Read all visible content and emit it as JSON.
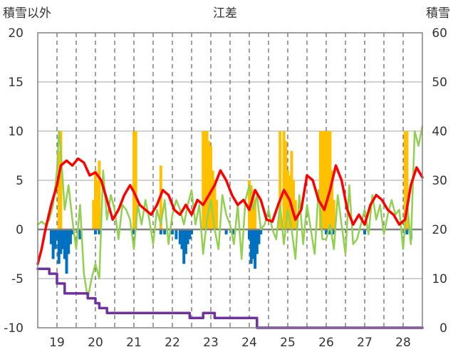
{
  "chart_data": {
    "type": "bar+line",
    "title": "江差",
    "left_axis": {
      "label": "積雪以外",
      "min": -10,
      "max": 20,
      "ticks": [
        "20",
        "15",
        "10",
        "5",
        "0",
        "-5",
        "-10"
      ]
    },
    "right_axis": {
      "label": "積雪",
      "min": 0,
      "max": 60,
      "ticks": [
        "60",
        "50",
        "40",
        "30",
        "20",
        "10",
        "0"
      ]
    },
    "x_axis": {
      "min": 18.5,
      "max": 28.5,
      "categories": [
        "19",
        "20",
        "21",
        "22",
        "23",
        "24",
        "25",
        "26",
        "27",
        "28"
      ]
    },
    "grid": true,
    "colors": {
      "temp": "#ff0000",
      "wind": "#92d050",
      "snow": "#7030a0",
      "sunshine": "#ffc000",
      "precip": "#0070c0",
      "zero": "#808080"
    },
    "series": [
      {
        "key": "temp",
        "axis": "left",
        "x": [
          18.5,
          18.6,
          18.7,
          18.85,
          19.0,
          19.1,
          19.25,
          19.4,
          19.55,
          19.7,
          19.85,
          20.0,
          20.15,
          20.3,
          20.45,
          20.6,
          20.75,
          20.9,
          21.0,
          21.15,
          21.3,
          21.45,
          21.6,
          21.75,
          21.9,
          22.05,
          22.2,
          22.35,
          22.5,
          22.65,
          22.8,
          22.95,
          23.1,
          23.25,
          23.4,
          23.55,
          23.7,
          23.85,
          24.0,
          24.15,
          24.3,
          24.45,
          24.6,
          24.75,
          24.9,
          25.05,
          25.2,
          25.35,
          25.5,
          25.65,
          25.8,
          25.95,
          26.1,
          26.25,
          26.4,
          26.55,
          26.7,
          26.85,
          27.0,
          27.15,
          27.3,
          27.45,
          27.6,
          27.75,
          27.9,
          28.05,
          28.2,
          28.35,
          28.5
        ],
        "values": [
          -3.5,
          -2.0,
          0.0,
          2.5,
          4.5,
          6.5,
          7.0,
          6.5,
          7.2,
          6.8,
          5.5,
          5.8,
          5.0,
          3.0,
          1.0,
          2.0,
          3.5,
          4.5,
          3.8,
          2.5,
          2.0,
          1.5,
          2.5,
          4.0,
          3.5,
          2.0,
          1.5,
          2.5,
          1.5,
          3.0,
          2.5,
          3.5,
          4.5,
          6.0,
          5.0,
          3.5,
          2.5,
          3.0,
          2.0,
          4.0,
          3.0,
          1.0,
          0.8,
          2.5,
          4.0,
          3.0,
          1.0,
          2.0,
          5.5,
          5.0,
          3.0,
          2.0,
          4.0,
          6.5,
          5.0,
          2.0,
          0.5,
          1.5,
          0.5,
          2.5,
          3.5,
          3.0,
          2.0,
          1.5,
          0.5,
          1.0,
          4.5,
          6.3,
          5.3
        ]
      },
      {
        "key": "wind",
        "axis": "left",
        "x": [
          18.5,
          18.6,
          18.7,
          18.8,
          18.9,
          19.0,
          19.05,
          19.1,
          19.2,
          19.3,
          19.4,
          19.5,
          19.6,
          19.7,
          19.8,
          19.9,
          20.0,
          20.1,
          20.2,
          20.3,
          20.4,
          20.5,
          20.6,
          20.7,
          20.8,
          20.9,
          21.0,
          21.1,
          21.2,
          21.3,
          21.4,
          21.5,
          21.6,
          21.7,
          21.8,
          21.9,
          22.0,
          22.1,
          22.2,
          22.3,
          22.4,
          22.5,
          22.6,
          22.7,
          22.8,
          22.9,
          23.0,
          23.1,
          23.2,
          23.3,
          23.4,
          23.5,
          23.6,
          23.7,
          23.8,
          23.9,
          24.0,
          24.1,
          24.2,
          24.3,
          24.4,
          24.5,
          24.6,
          24.7,
          24.8,
          24.9,
          25.0,
          25.1,
          25.2,
          25.3,
          25.4,
          25.5,
          25.6,
          25.7,
          25.8,
          25.9,
          26.0,
          26.1,
          26.2,
          26.3,
          26.4,
          26.5,
          26.6,
          26.7,
          26.8,
          26.9,
          27.0,
          27.1,
          27.2,
          27.3,
          27.4,
          27.5,
          27.6,
          27.7,
          27.8,
          27.9,
          28.0,
          28.1,
          28.2,
          28.3,
          28.4,
          28.5
        ],
        "values": [
          0.5,
          0.8,
          0.5,
          1.0,
          2.5,
          6.0,
          10.0,
          8.0,
          2.0,
          4.5,
          1.0,
          -2.0,
          2.5,
          -4.5,
          -7.0,
          -5.0,
          -3.5,
          -5.0,
          6.0,
          1.0,
          3.5,
          2.0,
          -1.0,
          2.5,
          2.0,
          1.0,
          -2.0,
          2.5,
          0.5,
          3.0,
          1.0,
          -1.5,
          2.0,
          0.5,
          3.0,
          -1.5,
          1.5,
          3.0,
          2.0,
          0.5,
          2.5,
          4.0,
          0.5,
          2.5,
          -2.5,
          1.0,
          3.0,
          0.0,
          -2.0,
          3.5,
          1.5,
          0.5,
          -1.5,
          2.5,
          -3.0,
          3.0,
          4.5,
          2.0,
          3.5,
          0.0,
          0.5,
          2.0,
          0.0,
          -1.0,
          2.5,
          -1.5,
          2.0,
          0.0,
          -3.0,
          3.5,
          -1.5,
          2.5,
          0.0,
          -2.5,
          4.0,
          -1.0,
          -1.0,
          0.5,
          -2.0,
          3.5,
          0.5,
          -2.5,
          4.5,
          -1.5,
          -1.0,
          0.5,
          2.0,
          -0.5,
          3.5,
          1.0,
          2.5,
          -0.5,
          1.5,
          3.0,
          1.5,
          2.0,
          -2.0,
          3.0,
          -1.5,
          10.0,
          8.5,
          10.5
        ]
      },
      {
        "key": "snow",
        "axis": "right",
        "x": [
          18.5,
          18.75,
          18.8,
          19.0,
          19.2,
          19.7,
          19.8,
          20.0,
          20.1,
          20.3,
          21.0,
          21.4,
          22.0,
          22.4,
          22.45,
          22.7,
          22.8,
          23.1,
          23.4,
          24.0,
          24.2,
          28.5
        ],
        "values": [
          12,
          12,
          11,
          9,
          7,
          7,
          6,
          5,
          4,
          3,
          3,
          3,
          3,
          3,
          2,
          2,
          3,
          2,
          2,
          2,
          0,
          0
        ]
      }
    ],
    "bars": [
      {
        "key": "sunshine",
        "axis": "left",
        "x": [
          19.05,
          19.1,
          19.95,
          20.0,
          20.05,
          20.1,
          21.0,
          21.05,
          21.7,
          22.8,
          22.85,
          22.9,
          22.95,
          23.0,
          23.05,
          23.1,
          23.15,
          24.0,
          24.05,
          24.1,
          24.15,
          24.8,
          24.9,
          24.95,
          25.0,
          25.05,
          25.1,
          25.15,
          25.2,
          25.85,
          25.9,
          25.95,
          26.0,
          26.05,
          26.1,
          26.15,
          26.2,
          28.05,
          28.1
        ],
        "values": [
          8.0,
          10.0,
          3.0,
          6.0,
          5.0,
          7.0,
          10.0,
          10.0,
          6.5,
          10.0,
          10.0,
          10.0,
          9.0,
          8.5,
          6.0,
          5.0,
          3.0,
          5.0,
          4.5,
          4.0,
          3.0,
          10.0,
          10.0,
          9.0,
          6.0,
          5.5,
          8.0,
          5.0,
          3.0,
          10.0,
          10.0,
          10.0,
          10.0,
          10.0,
          10.0,
          6.0,
          3.0,
          10.0,
          10.0
        ]
      },
      {
        "key": "precip",
        "axis": "left",
        "x": [
          18.85,
          18.9,
          18.95,
          19.0,
          19.05,
          19.1,
          19.15,
          19.2,
          19.25,
          19.3,
          19.35,
          19.4,
          19.6,
          20.0,
          20.1,
          21.0,
          21.7,
          21.8,
          22.0,
          22.1,
          22.2,
          22.25,
          22.3,
          22.35,
          22.4,
          22.45,
          22.5,
          23.4,
          23.6,
          24.0,
          24.05,
          24.1,
          24.15,
          24.2,
          24.25,
          24.3,
          26.0,
          26.1,
          26.2,
          27.0,
          28.1,
          28.2
        ],
        "values": [
          -1.5,
          -3.0,
          -2.0,
          -1.0,
          -3.5,
          -2.5,
          -2.0,
          -3.0,
          -4.5,
          -2.5,
          -1.5,
          -0.5,
          -1.0,
          -0.5,
          -0.5,
          -0.5,
          -0.5,
          -0.5,
          -0.5,
          -1.0,
          -1.5,
          -2.0,
          -3.5,
          -2.5,
          -1.5,
          -1.0,
          -0.5,
          -0.5,
          -0.5,
          -1.0,
          -3.5,
          -3.0,
          -4.0,
          -2.5,
          -1.5,
          -0.5,
          -0.5,
          -0.5,
          -0.5,
          -0.5,
          -0.5,
          -1.0
        ]
      }
    ]
  }
}
